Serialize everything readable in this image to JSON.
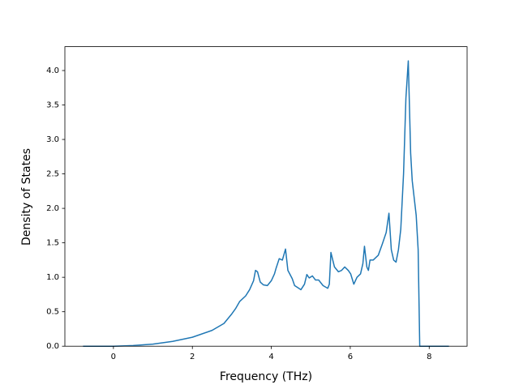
{
  "chart_data": {
    "type": "line",
    "xlabel": "Frequency (THz)",
    "ylabel": "Density of States",
    "xlim": [
      -1.23,
      8.96
    ],
    "ylim": [
      0,
      4.346
    ],
    "xticks": [
      0,
      2,
      4,
      6,
      8
    ],
    "yticks": [
      {
        "value": 0,
        "label": "0.0"
      },
      0.5,
      {
        "value": 1,
        "label": "1.0"
      },
      1.5,
      {
        "value": 2,
        "label": "2.0"
      },
      2.5,
      {
        "value": 3,
        "label": "3.0"
      },
      3.5,
      {
        "value": 4,
        "label": "4.0"
      }
    ],
    "series": [
      {
        "color": "#1f77b4",
        "x": [
          -0.77,
          0,
          0.5,
          1,
          1.5,
          2,
          2.5,
          2.8,
          3.0,
          3.1,
          3.2,
          3.35,
          3.45,
          3.55,
          3.6,
          3.65,
          3.72,
          3.8,
          3.9,
          4.0,
          4.08,
          4.12,
          4.2,
          4.28,
          4.36,
          4.42,
          4.53,
          4.59,
          4.67,
          4.75,
          4.84,
          4.9,
          4.96,
          5.04,
          5.12,
          5.2,
          5.31,
          5.43,
          5.47,
          5.51,
          5.6,
          5.7,
          5.78,
          5.86,
          5.95,
          6.01,
          6.09,
          6.17,
          6.26,
          6.32,
          6.36,
          6.42,
          6.46,
          6.5,
          6.58,
          6.71,
          6.81,
          6.91,
          6.98,
          7.04,
          7.1,
          7.16,
          7.22,
          7.28,
          7.35,
          7.41,
          7.47,
          7.53,
          7.57,
          7.67,
          7.72,
          7.76,
          8.5
        ],
        "values": [
          0,
          0,
          0.01,
          0.03,
          0.07,
          0.13,
          0.23,
          0.33,
          0.47,
          0.55,
          0.65,
          0.73,
          0.82,
          0.95,
          1.1,
          1.08,
          0.93,
          0.89,
          0.88,
          0.95,
          1.05,
          1.13,
          1.27,
          1.25,
          1.41,
          1.1,
          0.98,
          0.88,
          0.85,
          0.82,
          0.9,
          1.04,
          0.99,
          1.02,
          0.96,
          0.96,
          0.88,
          0.84,
          0.9,
          1.36,
          1.15,
          1.08,
          1.1,
          1.15,
          1.1,
          1.05,
          0.9,
          1.0,
          1.05,
          1.2,
          1.45,
          1.15,
          1.1,
          1.25,
          1.25,
          1.32,
          1.48,
          1.65,
          1.93,
          1.4,
          1.25,
          1.22,
          1.4,
          1.7,
          2.5,
          3.6,
          4.14,
          2.8,
          2.4,
          1.9,
          1.4,
          0,
          0
        ]
      }
    ]
  }
}
